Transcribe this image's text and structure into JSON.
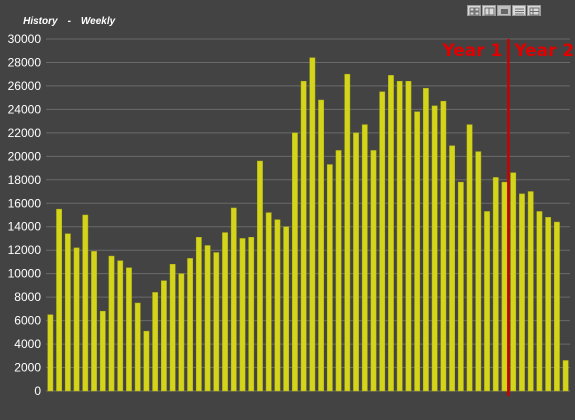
{
  "header": {
    "title": "History",
    "separator": "-",
    "period": "Weekly"
  },
  "toolbar": {
    "view_buttons": [
      "grid-view",
      "chart-view",
      "bar-view",
      "list-view",
      "table-view"
    ],
    "active_index": 2
  },
  "colors": {
    "background": "#434343",
    "bar": "#d4d41a",
    "bar_stroke": "#b5b512",
    "grid": "#6a6a6a",
    "axis_text": "#ffffff",
    "divider": "#cc0000",
    "year_label": "#e00000"
  },
  "chart_data": {
    "type": "bar",
    "ylim": [
      0,
      30000
    ],
    "yticks": [
      0,
      2000,
      4000,
      6000,
      8000,
      10000,
      12000,
      14000,
      16000,
      18000,
      20000,
      22000,
      24000,
      26000,
      28000,
      30000
    ],
    "grid": true,
    "values": [
      6500,
      15500,
      13400,
      12200,
      15000,
      11900,
      6800,
      11500,
      11100,
      10500,
      7500,
      5100,
      8400,
      9400,
      10800,
      10000,
      11300,
      13100,
      12400,
      11800,
      13500,
      15600,
      13000,
      13100,
      19600,
      15200,
      14600,
      14000,
      22000,
      26400,
      28400,
      24800,
      19300,
      20500,
      27000,
      22000,
      22700,
      20500,
      25500,
      26900,
      26400,
      26400,
      23800,
      25800,
      24300,
      24700,
      20900,
      17800,
      22700,
      20400,
      15300,
      18200,
      17800,
      18600,
      16800,
      17000,
      15300,
      14800,
      14400,
      2600
    ],
    "annotations": [
      {
        "text": "Year 1",
        "position": "left of divider"
      },
      {
        "text": "Year 2",
        "position": "right of divider"
      }
    ],
    "divider_after_index": 52
  }
}
